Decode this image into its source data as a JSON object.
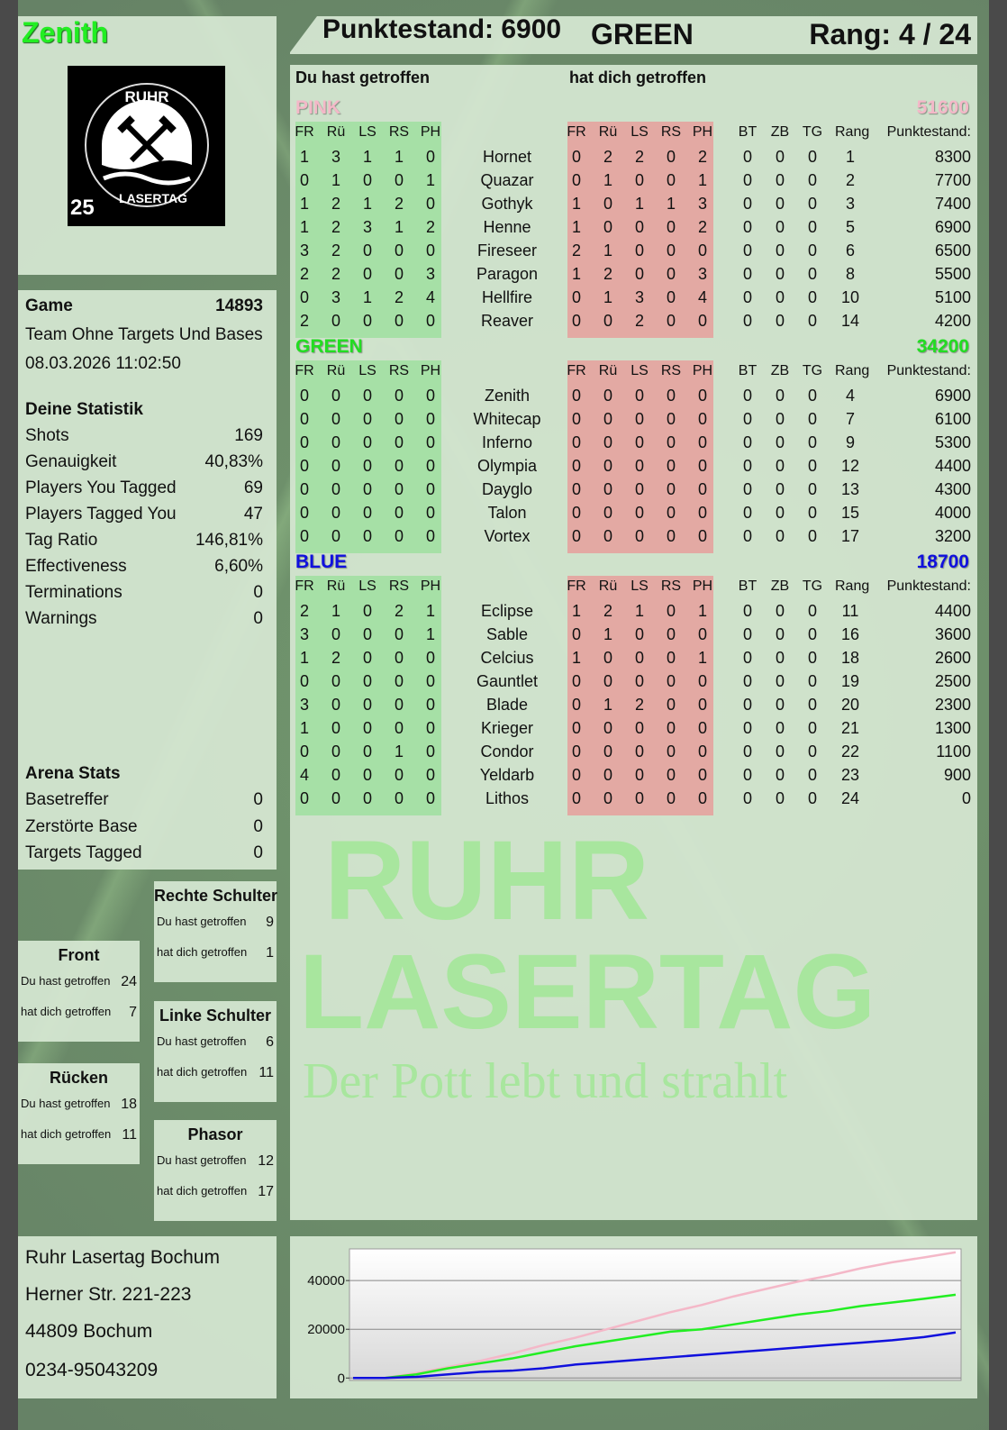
{
  "player": {
    "name": "Zenith",
    "score_label": "Punktestand: 6900",
    "team": "GREEN",
    "rank_label": "Rang: 4 / 24"
  },
  "logo": {
    "text_top": "RUHR",
    "text_bottom": "LASERTAG",
    "badge": "25"
  },
  "hits": {
    "you_hit": "Du hast getroffen",
    "hit_you": "hat dich getroffen"
  },
  "columns": {
    "zones": [
      "FR",
      "Rü",
      "LS",
      "RS",
      "PH"
    ],
    "extra": [
      "BT",
      "ZB",
      "TG",
      "Rang"
    ],
    "score": "Punktestand:"
  },
  "teams": [
    {
      "name": "PINK",
      "score": "51600",
      "color": "#f4b8c8",
      "players": [
        {
          "name": "Hornet",
          "you": [
            1,
            3,
            1,
            1,
            0
          ],
          "them": [
            0,
            2,
            2,
            0,
            2
          ],
          "extra": [
            0,
            0,
            0,
            1
          ],
          "score": "8300"
        },
        {
          "name": "Quazar",
          "you": [
            0,
            1,
            0,
            0,
            1
          ],
          "them": [
            0,
            1,
            0,
            0,
            1
          ],
          "extra": [
            0,
            0,
            0,
            2
          ],
          "score": "7700"
        },
        {
          "name": "Gothyk",
          "you": [
            1,
            2,
            1,
            2,
            0
          ],
          "them": [
            1,
            0,
            1,
            1,
            3
          ],
          "extra": [
            0,
            0,
            0,
            3
          ],
          "score": "7400"
        },
        {
          "name": "Henne",
          "you": [
            1,
            2,
            3,
            1,
            2
          ],
          "them": [
            1,
            0,
            0,
            0,
            2
          ],
          "extra": [
            0,
            0,
            0,
            5
          ],
          "score": "6900"
        },
        {
          "name": "Fireseer",
          "you": [
            3,
            2,
            0,
            0,
            0
          ],
          "them": [
            2,
            1,
            0,
            0,
            0
          ],
          "extra": [
            0,
            0,
            0,
            6
          ],
          "score": "6500"
        },
        {
          "name": "Paragon",
          "you": [
            2,
            2,
            0,
            0,
            3
          ],
          "them": [
            1,
            2,
            0,
            0,
            3
          ],
          "extra": [
            0,
            0,
            0,
            8
          ],
          "score": "5500"
        },
        {
          "name": "Hellfire",
          "you": [
            0,
            3,
            1,
            2,
            4
          ],
          "them": [
            0,
            1,
            3,
            0,
            4
          ],
          "extra": [
            0,
            0,
            0,
            10
          ],
          "score": "5100"
        },
        {
          "name": "Reaver",
          "you": [
            2,
            0,
            0,
            0,
            0
          ],
          "them": [
            0,
            0,
            2,
            0,
            0
          ],
          "extra": [
            0,
            0,
            0,
            14
          ],
          "score": "4200"
        }
      ]
    },
    {
      "name": "GREEN",
      "score": "34200",
      "color": "#22dd22",
      "players": [
        {
          "name": "Zenith",
          "you": [
            0,
            0,
            0,
            0,
            0
          ],
          "them": [
            0,
            0,
            0,
            0,
            0
          ],
          "extra": [
            0,
            0,
            0,
            4
          ],
          "score": "6900"
        },
        {
          "name": "Whitecap",
          "you": [
            0,
            0,
            0,
            0,
            0
          ],
          "them": [
            0,
            0,
            0,
            0,
            0
          ],
          "extra": [
            0,
            0,
            0,
            7
          ],
          "score": "6100"
        },
        {
          "name": "Inferno",
          "you": [
            0,
            0,
            0,
            0,
            0
          ],
          "them": [
            0,
            0,
            0,
            0,
            0
          ],
          "extra": [
            0,
            0,
            0,
            9
          ],
          "score": "5300"
        },
        {
          "name": "Olympia",
          "you": [
            0,
            0,
            0,
            0,
            0
          ],
          "them": [
            0,
            0,
            0,
            0,
            0
          ],
          "extra": [
            0,
            0,
            0,
            12
          ],
          "score": "4400"
        },
        {
          "name": "Dayglo",
          "you": [
            0,
            0,
            0,
            0,
            0
          ],
          "them": [
            0,
            0,
            0,
            0,
            0
          ],
          "extra": [
            0,
            0,
            0,
            13
          ],
          "score": "4300"
        },
        {
          "name": "Talon",
          "you": [
            0,
            0,
            0,
            0,
            0
          ],
          "them": [
            0,
            0,
            0,
            0,
            0
          ],
          "extra": [
            0,
            0,
            0,
            15
          ],
          "score": "4000"
        },
        {
          "name": "Vortex",
          "you": [
            0,
            0,
            0,
            0,
            0
          ],
          "them": [
            0,
            0,
            0,
            0,
            0
          ],
          "extra": [
            0,
            0,
            0,
            17
          ],
          "score": "3200"
        }
      ]
    },
    {
      "name": "BLUE",
      "score": "18700",
      "color": "#1010dd",
      "players": [
        {
          "name": "Eclipse",
          "you": [
            2,
            1,
            0,
            2,
            1
          ],
          "them": [
            1,
            2,
            1,
            0,
            1
          ],
          "extra": [
            0,
            0,
            0,
            11
          ],
          "score": "4400"
        },
        {
          "name": "Sable",
          "you": [
            3,
            0,
            0,
            0,
            1
          ],
          "them": [
            0,
            1,
            0,
            0,
            0
          ],
          "extra": [
            0,
            0,
            0,
            16
          ],
          "score": "3600"
        },
        {
          "name": "Celcius",
          "you": [
            1,
            2,
            0,
            0,
            0
          ],
          "them": [
            1,
            0,
            0,
            0,
            1
          ],
          "extra": [
            0,
            0,
            0,
            18
          ],
          "score": "2600"
        },
        {
          "name": "Gauntlet",
          "you": [
            0,
            0,
            0,
            0,
            0
          ],
          "them": [
            0,
            0,
            0,
            0,
            0
          ],
          "extra": [
            0,
            0,
            0,
            19
          ],
          "score": "2500"
        },
        {
          "name": "Blade",
          "you": [
            3,
            0,
            0,
            0,
            0
          ],
          "them": [
            0,
            1,
            2,
            0,
            0
          ],
          "extra": [
            0,
            0,
            0,
            20
          ],
          "score": "2300"
        },
        {
          "name": "Krieger",
          "you": [
            1,
            0,
            0,
            0,
            0
          ],
          "them": [
            0,
            0,
            0,
            0,
            0
          ],
          "extra": [
            0,
            0,
            0,
            21
          ],
          "score": "1300"
        },
        {
          "name": "Condor",
          "you": [
            0,
            0,
            0,
            1,
            0
          ],
          "them": [
            0,
            0,
            0,
            0,
            0
          ],
          "extra": [
            0,
            0,
            0,
            22
          ],
          "score": "1100"
        },
        {
          "name": "Yeldarb",
          "you": [
            4,
            0,
            0,
            0,
            0
          ],
          "them": [
            0,
            0,
            0,
            0,
            0
          ],
          "extra": [
            0,
            0,
            0,
            23
          ],
          "score": "900"
        },
        {
          "name": "Lithos",
          "you": [
            0,
            0,
            0,
            0,
            0
          ],
          "them": [
            0,
            0,
            0,
            0,
            0
          ],
          "extra": [
            0,
            0,
            0,
            24
          ],
          "score": "0"
        }
      ]
    }
  ],
  "game": {
    "label": "Game",
    "id": "14893",
    "mode": "Team Ohne Targets Und Bases",
    "datetime": "08.03.2026 11:02:50"
  },
  "stats": {
    "title": "Deine Statistik",
    "rows": [
      {
        "label": "Shots",
        "value": "169"
      },
      {
        "label": "Genauigkeit",
        "value": "40,83%"
      },
      {
        "label": "Players You Tagged",
        "value": "69"
      },
      {
        "label": "Players Tagged You",
        "value": "47"
      },
      {
        "label": "Tag Ratio",
        "value": "146,81%"
      },
      {
        "label": "Effectiveness",
        "value": "6,60%"
      },
      {
        "label": "Terminations",
        "value": "0"
      },
      {
        "label": "Warnings",
        "value": "0"
      }
    ]
  },
  "arena": {
    "title": "Arena Stats",
    "rows": [
      {
        "label": "Basetreffer",
        "value": "0"
      },
      {
        "label": "Zerstörte Base",
        "value": "0"
      },
      {
        "label": "Targets Tagged",
        "value": "0"
      }
    ]
  },
  "zones": [
    {
      "title": "Front",
      "you": "24",
      "them": "7"
    },
    {
      "title": "Rücken",
      "you": "18",
      "them": "11"
    },
    {
      "title": "Rechte Schulter",
      "you": "9",
      "them": "1"
    },
    {
      "title": "Linke Schulter",
      "you": "6",
      "them": "11"
    },
    {
      "title": "Phasor",
      "you": "12",
      "them": "17"
    }
  ],
  "address": {
    "line1": "Ruhr Lasertag Bochum",
    "line2": "Herner Str. 221-223",
    "line3": "44809 Bochum",
    "phone": "0234-95043209"
  },
  "watermark": {
    "line1": "RUHR",
    "line2": "LASERTAG",
    "slogan": "Der Pott lebt und strahlt"
  },
  "chart_data": {
    "type": "line",
    "title": "",
    "xlabel": "",
    "ylabel": "",
    "ylim": [
      -1000,
      53000
    ],
    "yticks": [
      0,
      20000,
      40000
    ],
    "grid": true,
    "series": [
      {
        "color": "#f4b8c8",
        "values": [
          0,
          0,
          2000,
          4500,
          7000,
          10000,
          13500,
          16500,
          20000,
          23500,
          27000,
          30000,
          33500,
          36500,
          39500,
          42000,
          45000,
          47500,
          49500,
          51600
        ]
      },
      {
        "color": "#22ee22",
        "values": [
          0,
          0,
          1500,
          4000,
          6000,
          8000,
          10500,
          13000,
          15000,
          17000,
          19000,
          20000,
          22000,
          24000,
          26000,
          27500,
          29500,
          31000,
          32500,
          34200
        ]
      },
      {
        "color": "#1010dd",
        "values": [
          0,
          0,
          500,
          1500,
          2500,
          3000,
          4000,
          5500,
          6500,
          7500,
          8500,
          9500,
          10500,
          11500,
          12500,
          13500,
          14500,
          15500,
          16800,
          18700
        ]
      }
    ]
  }
}
